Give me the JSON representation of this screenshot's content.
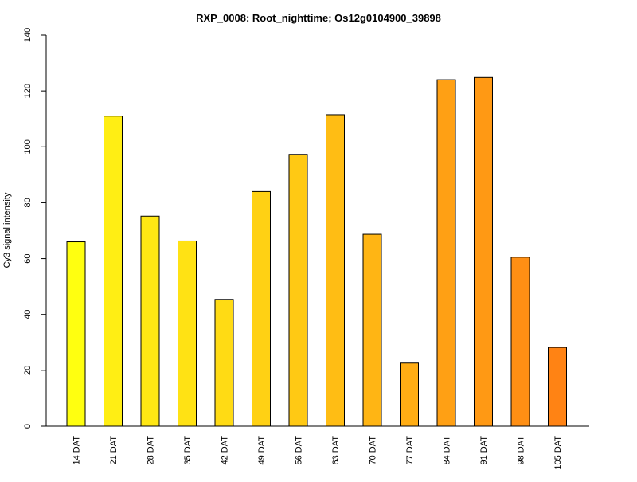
{
  "chart_data": {
    "type": "bar",
    "title": "RXP_0008: Root_nighttime; Os12g0104900_39898",
    "xlabel": "",
    "ylabel": "Cy3 signal intensity",
    "categories": [
      "14 DAT",
      "21 DAT",
      "28 DAT",
      "35 DAT",
      "42 DAT",
      "49 DAT",
      "56 DAT",
      "63 DAT",
      "70 DAT",
      "77 DAT",
      "84 DAT",
      "91 DAT",
      "98 DAT",
      "105 DAT"
    ],
    "values": [
      66,
      111,
      75.2,
      66.3,
      45.4,
      84,
      97.3,
      111.5,
      68.7,
      22.6,
      124,
      124.8,
      60.5,
      28.2
    ],
    "colors": [
      "#FFFF10",
      "#FFEE14",
      "#FFE714",
      "#FFE214",
      "#FFDB14",
      "#FFD114",
      "#FFC914",
      "#FFBD14",
      "#FFB514",
      "#FFAD14",
      "#FFA014",
      "#FF9914",
      "#FF8F14",
      "#FF8314"
    ],
    "ylim": [
      0,
      140
    ],
    "yticks": [
      0,
      20,
      40,
      60,
      80,
      100,
      120,
      140
    ],
    "grid": false,
    "legend": "none"
  }
}
